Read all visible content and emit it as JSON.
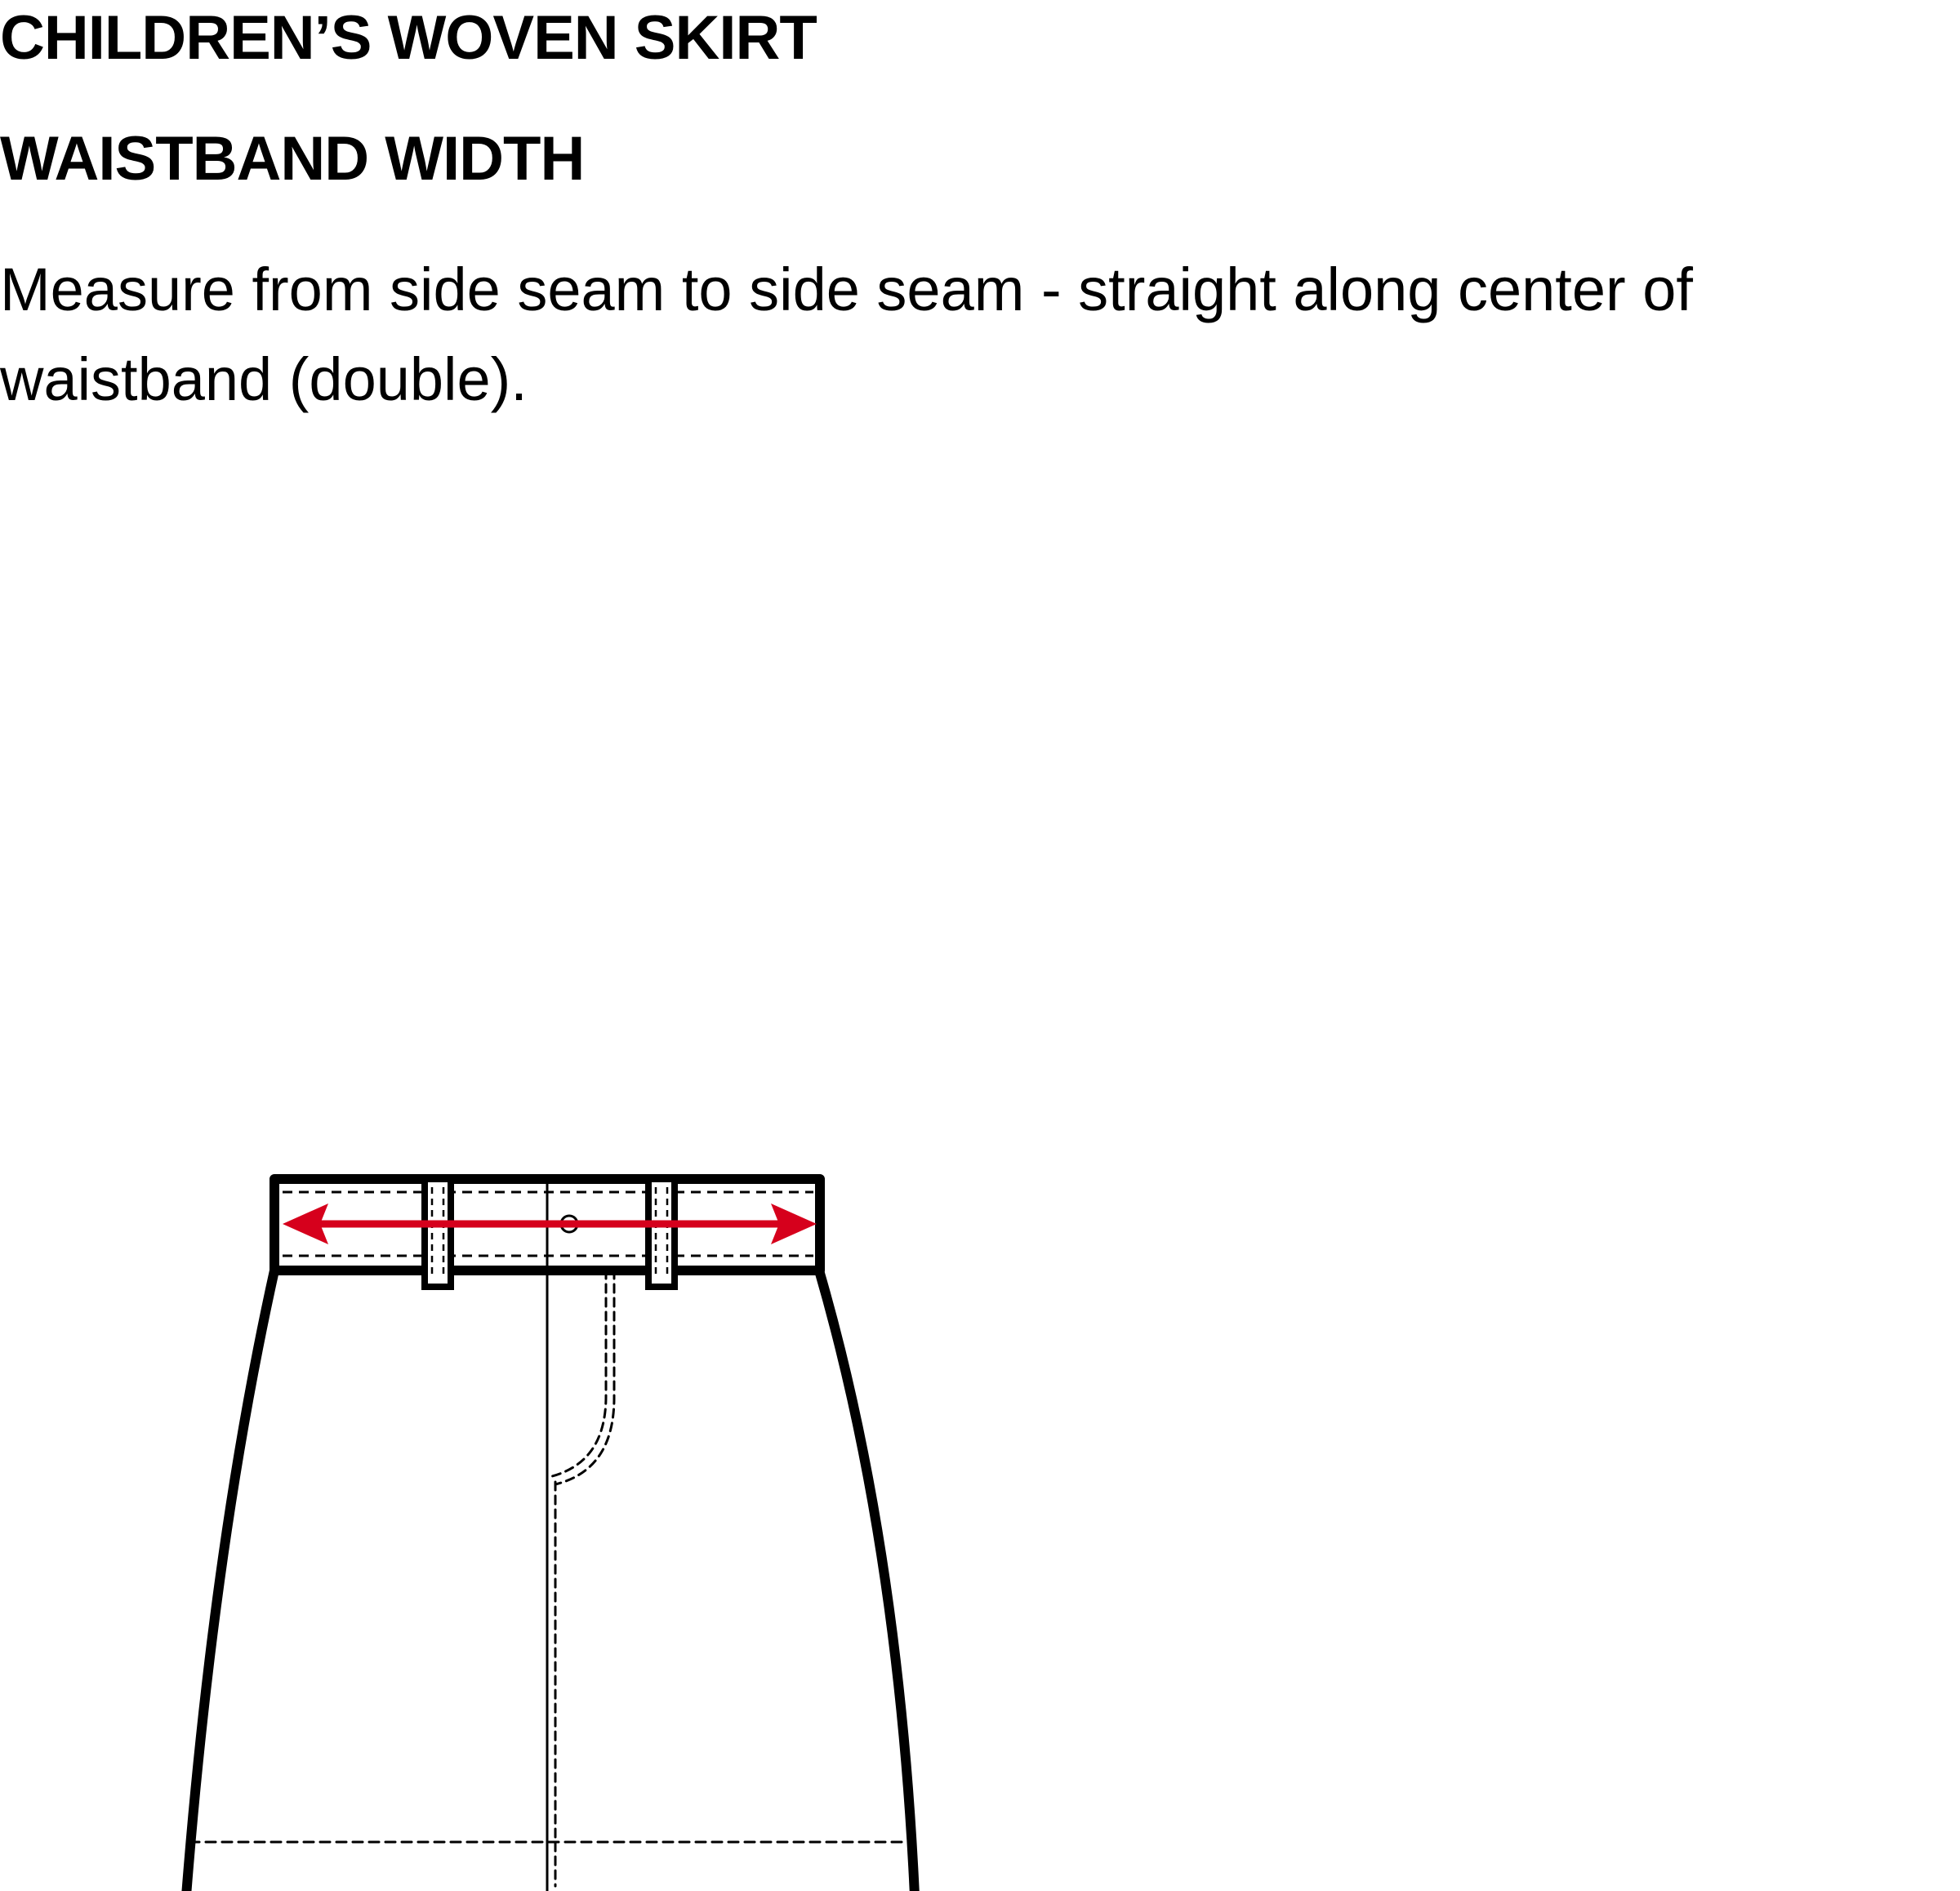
{
  "header": {
    "title": "CHILDREN’S WOVEN SKIRT",
    "subtitle": "WAISTBAND WIDTH"
  },
  "body": {
    "instructions": "Measure from side seam to side seam - straight along center of waistband (double)."
  },
  "colors": {
    "outline": "#000000",
    "measurement_arrow": "#d6001c",
    "background": "#ffffff"
  }
}
